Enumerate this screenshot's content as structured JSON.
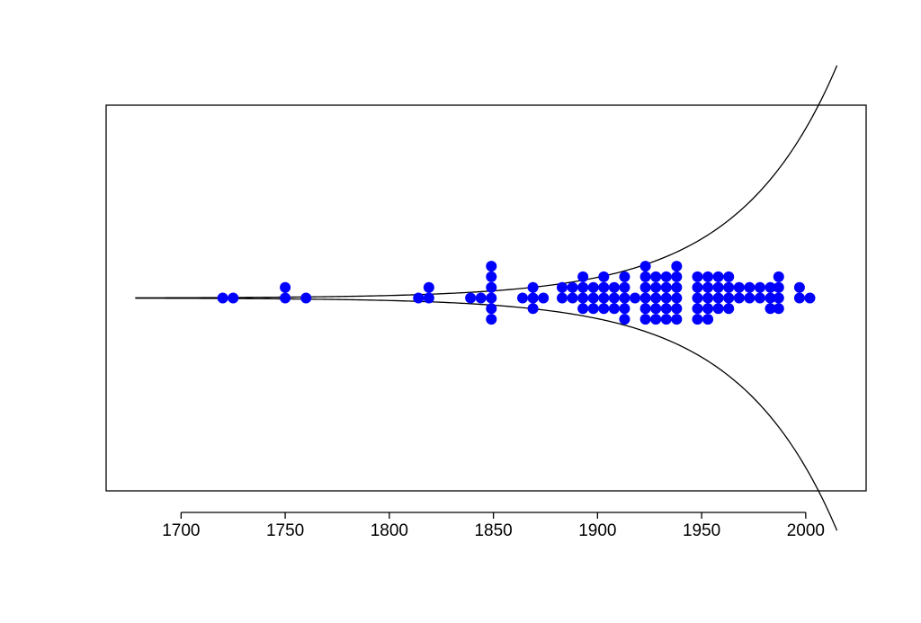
{
  "chart_data": {
    "type": "scatter",
    "style": "dot-stack (beeswarm) with exponential envelope",
    "title": "",
    "xlabel": "",
    "ylabel": "",
    "x_ticks": [
      1700,
      1750,
      1800,
      1850,
      1900,
      1950,
      2000
    ],
    "x_tick_labels": [
      "1700",
      "1750",
      "1800",
      "1850",
      "1900",
      "1950",
      "2000"
    ],
    "xlim": [
      1664,
      2029
    ],
    "ylim": [
      -10,
      10
    ],
    "y_axis_shown": false,
    "grid": false,
    "legend": "none",
    "point_color": "#0000ff",
    "line_color": "#000000",
    "envelope": {
      "x_start": 1678,
      "x_end": 2015,
      "formula": "y = ±0.01·exp((x − 1678)/47.5)"
    },
    "series": [
      {
        "points": [
          {
            "x": 1720,
            "y": 0
          },
          {
            "x": 1725,
            "y": 0
          },
          {
            "x": 1750,
            "y": 0
          },
          {
            "x": 1750,
            "y": 0.55
          },
          {
            "x": 1760,
            "y": 0
          },
          {
            "x": 1814,
            "y": 0
          },
          {
            "x": 1819,
            "y": 0
          },
          {
            "x": 1819,
            "y": 0.55
          },
          {
            "x": 1839,
            "y": 0
          },
          {
            "x": 1844,
            "y": 0
          },
          {
            "x": 1849,
            "y": 0
          },
          {
            "x": 1849,
            "y": 0.55
          },
          {
            "x": 1849,
            "y": 1.1
          },
          {
            "x": 1849,
            "y": 1.65
          },
          {
            "x": 1849,
            "y": -0.55
          },
          {
            "x": 1849,
            "y": -1.1
          },
          {
            "x": 1864,
            "y": 0
          },
          {
            "x": 1869,
            "y": 0
          },
          {
            "x": 1869,
            "y": 0.55
          },
          {
            "x": 1869,
            "y": -0.55
          },
          {
            "x": 1874,
            "y": 0
          },
          {
            "x": 1883,
            "y": 0
          },
          {
            "x": 1883,
            "y": 0.55
          },
          {
            "x": 1888,
            "y": 0
          },
          {
            "x": 1888,
            "y": 0.55
          },
          {
            "x": 1893,
            "y": 0
          },
          {
            "x": 1893,
            "y": 0.55
          },
          {
            "x": 1893,
            "y": 1.1
          },
          {
            "x": 1893,
            "y": -0.55
          },
          {
            "x": 1898,
            "y": 0
          },
          {
            "x": 1898,
            "y": 0.55
          },
          {
            "x": 1898,
            "y": -0.55
          },
          {
            "x": 1903,
            "y": 0
          },
          {
            "x": 1903,
            "y": 0.55
          },
          {
            "x": 1903,
            "y": 1.1
          },
          {
            "x": 1903,
            "y": -0.55
          },
          {
            "x": 1908,
            "y": 0
          },
          {
            "x": 1908,
            "y": 0.55
          },
          {
            "x": 1908,
            "y": -0.55
          },
          {
            "x": 1913,
            "y": 0
          },
          {
            "x": 1913,
            "y": 0.55
          },
          {
            "x": 1913,
            "y": 1.1
          },
          {
            "x": 1913,
            "y": -0.55
          },
          {
            "x": 1913,
            "y": -1.1
          },
          {
            "x": 1918,
            "y": 0
          },
          {
            "x": 1923,
            "y": 0
          },
          {
            "x": 1923,
            "y": 0.55
          },
          {
            "x": 1923,
            "y": 1.1
          },
          {
            "x": 1923,
            "y": 1.65
          },
          {
            "x": 1923,
            "y": -0.55
          },
          {
            "x": 1923,
            "y": -1.1
          },
          {
            "x": 1928,
            "y": 0
          },
          {
            "x": 1928,
            "y": 0.55
          },
          {
            "x": 1928,
            "y": 1.1
          },
          {
            "x": 1928,
            "y": -0.55
          },
          {
            "x": 1928,
            "y": -1.1
          },
          {
            "x": 1933,
            "y": 0
          },
          {
            "x": 1933,
            "y": 0.55
          },
          {
            "x": 1933,
            "y": 1.1
          },
          {
            "x": 1933,
            "y": -0.55
          },
          {
            "x": 1933,
            "y": -1.1
          },
          {
            "x": 1938,
            "y": 0
          },
          {
            "x": 1938,
            "y": 0.55
          },
          {
            "x": 1938,
            "y": 1.1
          },
          {
            "x": 1938,
            "y": 1.65
          },
          {
            "x": 1938,
            "y": -0.55
          },
          {
            "x": 1938,
            "y": -1.1
          },
          {
            "x": 1948,
            "y": 0
          },
          {
            "x": 1948,
            "y": 0.55
          },
          {
            "x": 1948,
            "y": 1.1
          },
          {
            "x": 1948,
            "y": -0.55
          },
          {
            "x": 1948,
            "y": -1.1
          },
          {
            "x": 1953,
            "y": 0
          },
          {
            "x": 1953,
            "y": 0.55
          },
          {
            "x": 1953,
            "y": 1.1
          },
          {
            "x": 1953,
            "y": -0.55
          },
          {
            "x": 1953,
            "y": -1.1
          },
          {
            "x": 1958,
            "y": 0
          },
          {
            "x": 1958,
            "y": 0.55
          },
          {
            "x": 1958,
            "y": 1.1
          },
          {
            "x": 1958,
            "y": -0.55
          },
          {
            "x": 1963,
            "y": 0
          },
          {
            "x": 1963,
            "y": 0.55
          },
          {
            "x": 1963,
            "y": 1.1
          },
          {
            "x": 1963,
            "y": -0.55
          },
          {
            "x": 1968,
            "y": 0
          },
          {
            "x": 1968,
            "y": 0.55
          },
          {
            "x": 1973,
            "y": 0
          },
          {
            "x": 1973,
            "y": 0.55
          },
          {
            "x": 1978,
            "y": 0
          },
          {
            "x": 1978,
            "y": 0.55
          },
          {
            "x": 1983,
            "y": 0
          },
          {
            "x": 1983,
            "y": 0.55
          },
          {
            "x": 1983,
            "y": -0.55
          },
          {
            "x": 1987,
            "y": 0
          },
          {
            "x": 1987,
            "y": 0.55
          },
          {
            "x": 1987,
            "y": 1.1
          },
          {
            "x": 1987,
            "y": -0.55
          },
          {
            "x": 1997,
            "y": 0
          },
          {
            "x": 1997,
            "y": 0.55
          },
          {
            "x": 2002,
            "y": 0
          }
        ]
      }
    ]
  }
}
